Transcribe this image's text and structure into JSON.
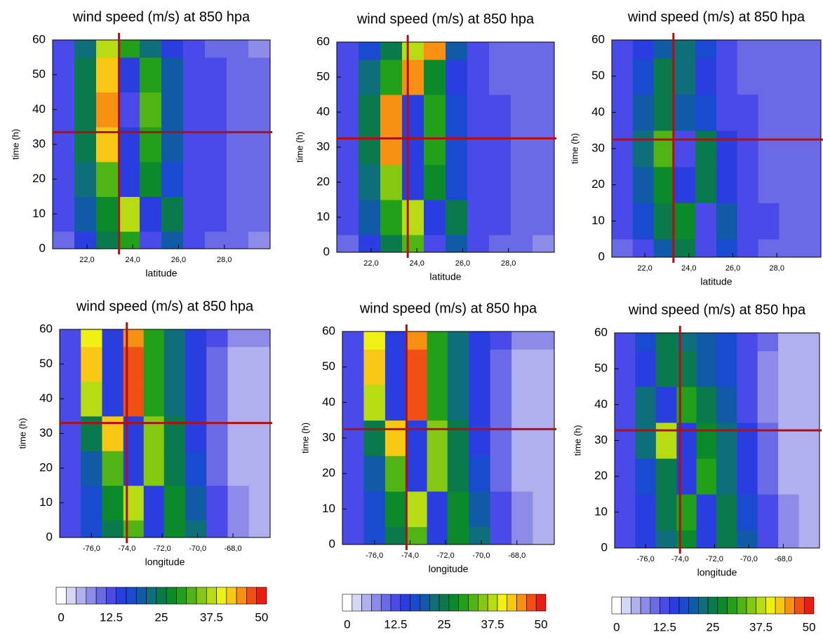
{
  "palette": [
    "#ffffff",
    "#d6d6f5",
    "#b0b0ee",
    "#8c8ce8",
    "#6a6ae6",
    "#4a4ae8",
    "#2a3ee0",
    "#1a4ad0",
    "#105aa8",
    "#0e6e7a",
    "#0a7a4c",
    "#0a8a2a",
    "#22a01a",
    "#50b414",
    "#84c814",
    "#b8dc14",
    "#f0f014",
    "#f8c814",
    "#f89014",
    "#f05014",
    "#e81e14"
  ],
  "chart_data": [
    {
      "type": "heatmap",
      "title": "wind speed (m/s) at 850 hpa",
      "xlabel": "latitude",
      "ylabel": "time (h)",
      "x": [
        21,
        21.9,
        22.9,
        23.8,
        24.8,
        25.7,
        26.7,
        27.6,
        28.6,
        29.5
      ],
      "y": [
        0,
        10,
        20,
        30,
        40,
        50,
        60
      ],
      "z": [
        [
          10,
          16,
          24,
          30,
          14,
          20,
          13,
          11,
          10,
          9
        ],
        [
          12,
          20,
          28,
          36,
          15,
          24,
          14,
          12,
          11,
          10
        ],
        [
          14,
          22,
          32,
          16,
          28,
          18,
          13,
          12,
          11,
          10
        ],
        [
          14,
          24,
          42,
          15,
          30,
          20,
          14,
          12,
          11,
          10
        ],
        [
          14,
          26,
          44,
          14,
          32,
          20,
          14,
          12,
          11,
          10
        ],
        [
          14,
          24,
          42,
          16,
          30,
          20,
          14,
          12,
          10,
          10
        ],
        [
          12,
          22,
          36,
          30,
          22,
          16,
          12,
          11,
          10,
          9
        ]
      ],
      "xlim": [
        20.5,
        30
      ],
      "ylim": [
        0,
        60
      ],
      "xticks": [
        {
          "value": 22,
          "label": "22,0"
        },
        {
          "value": 24,
          "label": "24,0"
        },
        {
          "value": 26,
          "label": "26,0"
        },
        {
          "value": 28,
          "label": "28,0"
        }
      ],
      "yticks": [
        0,
        10,
        20,
        30,
        40,
        50,
        60
      ],
      "crosshair": {
        "x": 23.4,
        "y": 33.5,
        "color": "#b01010"
      }
    },
    {
      "type": "heatmap",
      "title": "wind speed (m/s) at 850 hpa",
      "xlabel": "latitude",
      "ylabel": "time (h)",
      "x": [
        21,
        21.9,
        22.9,
        23.8,
        24.8,
        25.7,
        26.7,
        27.6,
        28.6,
        29.5
      ],
      "y": [
        0,
        10,
        20,
        30,
        40,
        50,
        60
      ],
      "z": [
        [
          10,
          16,
          26,
          32,
          14,
          20,
          13,
          11,
          10,
          9
        ],
        [
          12,
          20,
          30,
          38,
          15,
          24,
          14,
          12,
          11,
          10
        ],
        [
          12,
          22,
          34,
          16,
          28,
          18,
          13,
          12,
          11,
          10
        ],
        [
          14,
          26,
          44,
          15,
          30,
          18,
          13,
          12,
          11,
          10
        ],
        [
          14,
          26,
          44,
          16,
          30,
          18,
          13,
          12,
          11,
          10
        ],
        [
          13,
          22,
          30,
          44,
          28,
          16,
          12,
          11,
          10,
          10
        ],
        [
          12,
          18,
          24,
          36,
          44,
          20,
          12,
          11,
          10,
          10
        ]
      ],
      "xlim": [
        20.5,
        30
      ],
      "ylim": [
        0,
        60
      ],
      "xticks": [
        {
          "value": 22,
          "label": "22,0"
        },
        {
          "value": 24,
          "label": "24,0"
        },
        {
          "value": 26,
          "label": "26,0"
        },
        {
          "value": 28,
          "label": "28,0"
        }
      ],
      "yticks": [
        0,
        10,
        20,
        30,
        40,
        50,
        60
      ],
      "crosshair": {
        "x": 23.6,
        "y": 32.5,
        "color": "#b01010"
      }
    },
    {
      "type": "heatmap",
      "title": "wind speed (m/s) at 850 hpa",
      "xlabel": "latitude",
      "ylabel": "time (h)",
      "x": [
        21,
        21.9,
        22.9,
        23.8,
        24.8,
        25.7,
        26.7,
        27.6,
        28.6,
        29.5
      ],
      "y": [
        0,
        10,
        20,
        30,
        40,
        50,
        60
      ],
      "z": [
        [
          10,
          14,
          20,
          24,
          14,
          18,
          12,
          11,
          10,
          10
        ],
        [
          12,
          18,
          24,
          28,
          14,
          20,
          13,
          12,
          11,
          10
        ],
        [
          12,
          20,
          28,
          16,
          24,
          16,
          12,
          11,
          10,
          10
        ],
        [
          12,
          22,
          32,
          14,
          26,
          16,
          12,
          11,
          10,
          10
        ],
        [
          12,
          20,
          26,
          20,
          18,
          14,
          12,
          11,
          10,
          10
        ],
        [
          12,
          18,
          24,
          22,
          16,
          13,
          11,
          10,
          10,
          10
        ],
        [
          12,
          16,
          20,
          22,
          18,
          12,
          11,
          10,
          10,
          10
        ]
      ],
      "xlim": [
        20.5,
        30
      ],
      "ylim": [
        0,
        60
      ],
      "xticks": [
        {
          "value": 22,
          "label": "22,0"
        },
        {
          "value": 24,
          "label": "24,0"
        },
        {
          "value": 26,
          "label": "26,0"
        },
        {
          "value": 28,
          "label": "28,0"
        }
      ],
      "yticks": [
        0,
        10,
        20,
        30,
        40,
        50,
        60
      ],
      "crosshair": {
        "x": 23.3,
        "y": 32.5,
        "color": "#b01010"
      }
    },
    {
      "type": "heatmap",
      "title": "wind speed (m/s) at 850 hpa",
      "xlabel": "longitude",
      "ylabel": "time (h)",
      "x": [
        -77.2,
        -76,
        -74.8,
        -73.6,
        -72.5,
        -71.3,
        -70.1,
        -68.9,
        -67.7,
        -66.5
      ],
      "y": [
        0,
        10,
        20,
        30,
        40,
        50,
        60
      ],
      "z": [
        [
          14,
          18,
          24,
          32,
          16,
          28,
          22,
          14,
          8,
          6
        ],
        [
          14,
          18,
          28,
          36,
          16,
          28,
          20,
          12,
          8,
          6
        ],
        [
          14,
          20,
          32,
          16,
          34,
          24,
          18,
          10,
          6,
          5
        ],
        [
          14,
          26,
          42,
          15,
          34,
          24,
          16,
          10,
          6,
          5
        ],
        [
          14,
          38,
          15,
          46,
          30,
          22,
          16,
          10,
          6,
          6
        ],
        [
          14,
          42,
          15,
          46,
          30,
          22,
          16,
          10,
          7,
          7
        ],
        [
          14,
          40,
          15,
          44,
          30,
          22,
          16,
          12,
          8,
          8
        ]
      ],
      "xlim": [
        -77.8,
        -65.9
      ],
      "ylim": [
        0,
        60
      ],
      "xticks": [
        {
          "value": -76,
          "label": "-76,0"
        },
        {
          "value": -74,
          "label": "-74,0"
        },
        {
          "value": -72,
          "label": "-72,0"
        },
        {
          "value": -70,
          "label": "-70,0"
        },
        {
          "value": -68,
          "label": "-68,0"
        }
      ],
      "yticks": [
        0,
        10,
        20,
        30,
        40,
        50,
        60
      ],
      "crosshair": {
        "x": -74,
        "y": 33,
        "color": "#b01010"
      },
      "colorbar": {
        "lim": [
          0,
          50
        ],
        "ticks": [
          0,
          12.5,
          25,
          37.5,
          50
        ]
      }
    },
    {
      "type": "heatmap",
      "title": "wind speed (m/s) at 850 hpa",
      "xlabel": "longitude",
      "ylabel": "time (h)",
      "x": [
        -77.2,
        -76,
        -74.8,
        -73.6,
        -72.5,
        -71.3,
        -70.1,
        -68.9,
        -67.7,
        -66.5
      ],
      "y": [
        0,
        10,
        20,
        30,
        40,
        50,
        60
      ],
      "z": [
        [
          14,
          18,
          24,
          32,
          16,
          28,
          22,
          14,
          8,
          6
        ],
        [
          14,
          18,
          28,
          36,
          16,
          28,
          20,
          12,
          8,
          6
        ],
        [
          14,
          20,
          32,
          16,
          34,
          24,
          18,
          10,
          6,
          5
        ],
        [
          14,
          26,
          42,
          15,
          34,
          24,
          16,
          10,
          6,
          5
        ],
        [
          14,
          38,
          15,
          46,
          30,
          22,
          16,
          10,
          6,
          6
        ],
        [
          14,
          42,
          15,
          46,
          30,
          22,
          16,
          10,
          7,
          7
        ],
        [
          14,
          40,
          15,
          44,
          30,
          22,
          16,
          12,
          8,
          8
        ]
      ],
      "xlim": [
        -77.8,
        -65.9
      ],
      "ylim": [
        0,
        60
      ],
      "xticks": [
        {
          "value": -76,
          "label": "-76,0"
        },
        {
          "value": -74,
          "label": "-74,0"
        },
        {
          "value": -72,
          "label": "-72,0"
        },
        {
          "value": -70,
          "label": "-70,0"
        },
        {
          "value": -68,
          "label": "-68,0"
        }
      ],
      "yticks": [
        0,
        10,
        20,
        30,
        40,
        50,
        60
      ],
      "crosshair": {
        "x": -74.2,
        "y": 32.5,
        "color": "#b01010"
      },
      "colorbar": {
        "lim": [
          0,
          50
        ],
        "ticks": [
          0,
          12.5,
          25,
          37.5,
          50
        ]
      }
    },
    {
      "type": "heatmap",
      "title": "wind speed (m/s) at 850 hpa",
      "xlabel": "longitude",
      "ylabel": "time (h)",
      "x": [
        -77.2,
        -76,
        -74.8,
        -73.6,
        -72.5,
        -71.3,
        -70.1,
        -68.9,
        -67.7,
        -66.5
      ],
      "y": [
        0,
        10,
        20,
        30,
        40,
        50,
        60
      ],
      "z": [
        [
          14,
          16,
          22,
          28,
          16,
          24,
          20,
          14,
          8,
          6
        ],
        [
          14,
          16,
          24,
          30,
          16,
          24,
          18,
          12,
          8,
          6
        ],
        [
          14,
          18,
          26,
          16,
          30,
          22,
          16,
          10,
          6,
          5
        ],
        [
          14,
          22,
          36,
          15,
          28,
          22,
          16,
          10,
          6,
          5
        ],
        [
          14,
          22,
          15,
          30,
          24,
          20,
          14,
          8,
          5,
          5
        ],
        [
          14,
          16,
          26,
          24,
          20,
          18,
          14,
          8,
          5,
          5
        ],
        [
          14,
          18,
          26,
          22,
          20,
          18,
          14,
          10,
          6,
          6
        ]
      ],
      "xlim": [
        -77.8,
        -65.9
      ],
      "ylim": [
        0,
        60
      ],
      "xticks": [
        {
          "value": -76,
          "label": "-76,0"
        },
        {
          "value": -74,
          "label": "-74,0"
        },
        {
          "value": -72,
          "label": "-72,0"
        },
        {
          "value": -70,
          "label": "-70,0"
        },
        {
          "value": -68,
          "label": "-68,0"
        }
      ],
      "yticks": [
        0,
        10,
        20,
        30,
        40,
        50,
        60
      ],
      "crosshair": {
        "x": -74,
        "y": 32.8,
        "color": "#b01010"
      },
      "colorbar": {
        "lim": [
          0,
          50
        ],
        "ticks": [
          0,
          12.5,
          25,
          37.5,
          50
        ]
      }
    }
  ]
}
